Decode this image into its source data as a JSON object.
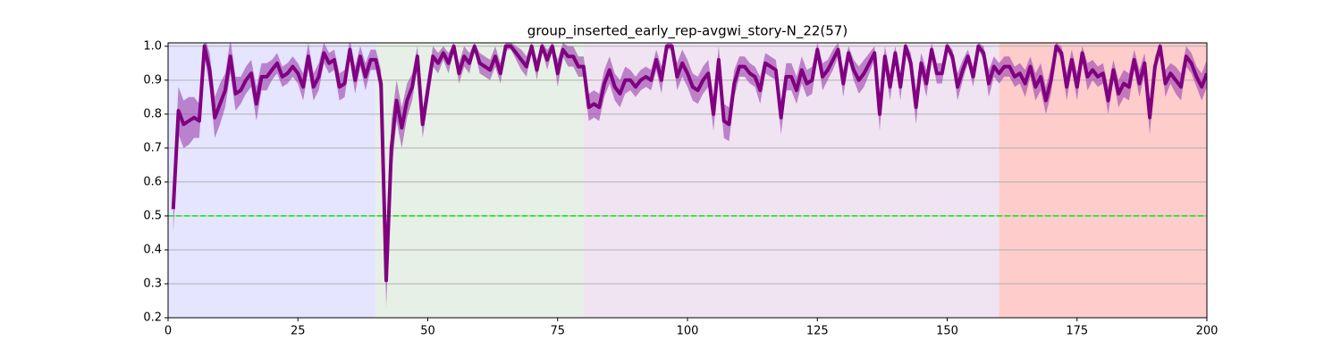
{
  "chart_data": {
    "type": "line",
    "title": "group_inserted_early_rep-avgwi_story-N_22(57)",
    "xlim": [
      0,
      200
    ],
    "ylim": [
      0.2,
      1.01
    ],
    "xticks": [
      0,
      25,
      50,
      75,
      100,
      125,
      150,
      175,
      200
    ],
    "yticks": [
      0.2,
      0.3,
      0.4,
      0.5,
      0.6,
      0.7,
      0.8,
      0.9,
      {
        "value": 1,
        "label": "1.0"
      }
    ],
    "grid": true,
    "spans": [
      {
        "range": [
          0,
          40
        ],
        "color": "#e5e5ff"
      },
      {
        "range": [
          40,
          80
        ],
        "color": "#e6f0e6"
      },
      {
        "range": [
          80,
          160
        ],
        "color": "#f0e4f2"
      },
      {
        "range": [
          160,
          200
        ],
        "color": "#ffcccc"
      }
    ],
    "hline": {
      "value": 0.5,
      "color": "#00ee00"
    },
    "x": [
      1,
      2,
      3,
      4,
      5,
      6,
      7,
      8,
      9,
      10,
      11,
      12,
      13,
      14,
      15,
      16,
      17,
      18,
      19,
      20,
      21,
      22,
      23,
      24,
      25,
      26,
      27,
      28,
      29,
      30,
      31,
      32,
      33,
      34,
      35,
      36,
      37,
      38,
      39,
      40,
      41,
      42,
      43,
      44,
      45,
      46,
      47,
      48,
      49,
      50,
      51,
      52,
      53,
      54,
      55,
      56,
      57,
      58,
      59,
      60,
      61,
      62,
      63,
      64,
      65,
      66,
      67,
      68,
      69,
      70,
      71,
      72,
      73,
      74,
      75,
      76,
      77,
      78,
      79,
      80,
      81,
      82,
      83,
      84,
      85,
      86,
      87,
      88,
      89,
      90,
      91,
      92,
      93,
      94,
      95,
      96,
      97,
      98,
      99,
      100,
      101,
      102,
      103,
      104,
      105,
      106,
      107,
      108,
      109,
      110,
      111,
      112,
      113,
      114,
      115,
      116,
      117,
      118,
      119,
      120,
      121,
      122,
      123,
      124,
      125,
      126,
      127,
      128,
      129,
      130,
      131,
      132,
      133,
      134,
      135,
      136,
      137,
      138,
      139,
      140,
      141,
      142,
      143,
      144,
      145,
      146,
      147,
      148,
      149,
      150,
      151,
      152,
      153,
      154,
      155,
      156,
      157,
      158,
      159,
      160,
      161,
      162,
      163,
      164,
      165,
      166,
      167,
      168,
      169,
      170,
      171,
      172,
      173,
      174,
      175,
      176,
      177,
      178,
      179,
      180,
      181,
      182,
      183,
      184,
      185,
      186,
      187,
      188,
      189,
      190,
      191,
      192,
      193,
      194,
      195,
      196,
      197,
      198,
      199,
      200
    ],
    "series": [
      {
        "color": "#800080",
        "band_color": "#9b3fae",
        "values": [
          0.52,
          0.81,
          0.77,
          0.78,
          0.79,
          0.78,
          1.0,
          0.93,
          0.79,
          0.83,
          0.87,
          0.97,
          0.86,
          0.87,
          0.9,
          0.92,
          0.83,
          0.91,
          0.91,
          0.93,
          0.95,
          0.91,
          0.92,
          0.94,
          0.92,
          0.88,
          0.97,
          0.88,
          0.91,
          0.98,
          0.95,
          0.96,
          0.88,
          0.89,
          0.99,
          0.9,
          0.97,
          0.91,
          0.96,
          0.96,
          0.89,
          0.31,
          0.7,
          0.84,
          0.76,
          0.84,
          0.88,
          0.97,
          0.77,
          0.87,
          0.97,
          0.95,
          0.98,
          0.95,
          1.0,
          0.92,
          0.97,
          0.95,
          1.0,
          0.95,
          0.94,
          0.93,
          0.97,
          0.92,
          1.0,
          1.0,
          0.98,
          0.96,
          0.94,
          1.0,
          0.93,
          1.0,
          0.96,
          1.0,
          0.92,
          0.99,
          0.97,
          0.97,
          0.94,
          0.94,
          0.82,
          0.83,
          0.82,
          0.89,
          0.93,
          0.88,
          0.86,
          0.9,
          0.9,
          0.88,
          0.9,
          0.91,
          0.9,
          0.96,
          0.9,
          1.0,
          1.0,
          0.91,
          0.95,
          0.92,
          0.88,
          0.87,
          0.9,
          0.92,
          0.8,
          0.96,
          0.78,
          0.77,
          0.89,
          0.94,
          0.94,
          0.92,
          0.91,
          0.87,
          0.95,
          0.94,
          0.93,
          0.79,
          0.91,
          0.91,
          0.87,
          0.93,
          0.89,
          0.9,
          0.99,
          0.91,
          0.93,
          0.96,
          0.99,
          0.89,
          0.98,
          0.93,
          0.9,
          0.92,
          0.95,
          0.98,
          0.8,
          0.97,
          0.88,
          0.98,
          0.88,
          1.0,
          0.95,
          0.82,
          0.95,
          0.89,
          0.99,
          0.92,
          0.92,
          1.0,
          0.97,
          0.88,
          0.93,
          0.97,
          0.91,
          1.0,
          0.98,
          0.89,
          0.94,
          0.92,
          0.94,
          0.94,
          0.91,
          0.92,
          0.89,
          0.94,
          0.88,
          0.91,
          0.84,
          0.9,
          1.0,
          0.98,
          0.88,
          0.96,
          0.88,
          0.98,
          0.91,
          0.93,
          0.91,
          0.92,
          0.84,
          0.93,
          0.86,
          0.89,
          0.88,
          0.96,
          0.89,
          0.95,
          0.79,
          0.94,
          1.0,
          0.89,
          0.92,
          0.9,
          0.88,
          0.97,
          0.95,
          0.91,
          0.88,
          0.92
        ],
        "errors": [
          0.07,
          0.07,
          0.07,
          0.07,
          0.06,
          0.05,
          0.03,
          0.05,
          0.06,
          0.06,
          0.05,
          0.05,
          0.05,
          0.04,
          0.04,
          0.04,
          0.05,
          0.04,
          0.04,
          0.03,
          0.03,
          0.03,
          0.03,
          0.03,
          0.03,
          0.04,
          0.04,
          0.04,
          0.04,
          0.03,
          0.03,
          0.03,
          0.04,
          0.04,
          0.03,
          0.04,
          0.03,
          0.04,
          0.03,
          0.03,
          0.04,
          0.08,
          0.08,
          0.06,
          0.06,
          0.05,
          0.04,
          0.03,
          0.04,
          0.04,
          0.03,
          0.03,
          0.02,
          0.03,
          0.01,
          0.03,
          0.03,
          0.03,
          0.01,
          0.03,
          0.03,
          0.03,
          0.03,
          0.03,
          0.01,
          0.01,
          0.02,
          0.03,
          0.03,
          0.01,
          0.03,
          0.01,
          0.03,
          0.01,
          0.04,
          0.02,
          0.03,
          0.03,
          0.03,
          0.03,
          0.04,
          0.04,
          0.04,
          0.04,
          0.04,
          0.04,
          0.04,
          0.04,
          0.03,
          0.03,
          0.03,
          0.03,
          0.03,
          0.03,
          0.04,
          0.01,
          0.01,
          0.04,
          0.04,
          0.04,
          0.04,
          0.04,
          0.04,
          0.04,
          0.05,
          0.04,
          0.05,
          0.05,
          0.04,
          0.03,
          0.03,
          0.03,
          0.03,
          0.04,
          0.03,
          0.03,
          0.03,
          0.05,
          0.04,
          0.04,
          0.04,
          0.04,
          0.04,
          0.04,
          0.02,
          0.04,
          0.03,
          0.03,
          0.02,
          0.04,
          0.02,
          0.03,
          0.04,
          0.04,
          0.03,
          0.02,
          0.05,
          0.03,
          0.04,
          0.02,
          0.04,
          0.01,
          0.03,
          0.05,
          0.03,
          0.04,
          0.02,
          0.03,
          0.03,
          0.01,
          0.02,
          0.04,
          0.03,
          0.02,
          0.03,
          0.01,
          0.02,
          0.04,
          0.03,
          0.03,
          0.03,
          0.03,
          0.03,
          0.03,
          0.04,
          0.03,
          0.04,
          0.04,
          0.04,
          0.04,
          0.01,
          0.02,
          0.04,
          0.03,
          0.04,
          0.02,
          0.04,
          0.03,
          0.03,
          0.03,
          0.04,
          0.03,
          0.04,
          0.04,
          0.04,
          0.03,
          0.04,
          0.03,
          0.05,
          0.03,
          0.01,
          0.04,
          0.03,
          0.04,
          0.04,
          0.03,
          0.03,
          0.03,
          0.04,
          0.04
        ]
      }
    ]
  }
}
